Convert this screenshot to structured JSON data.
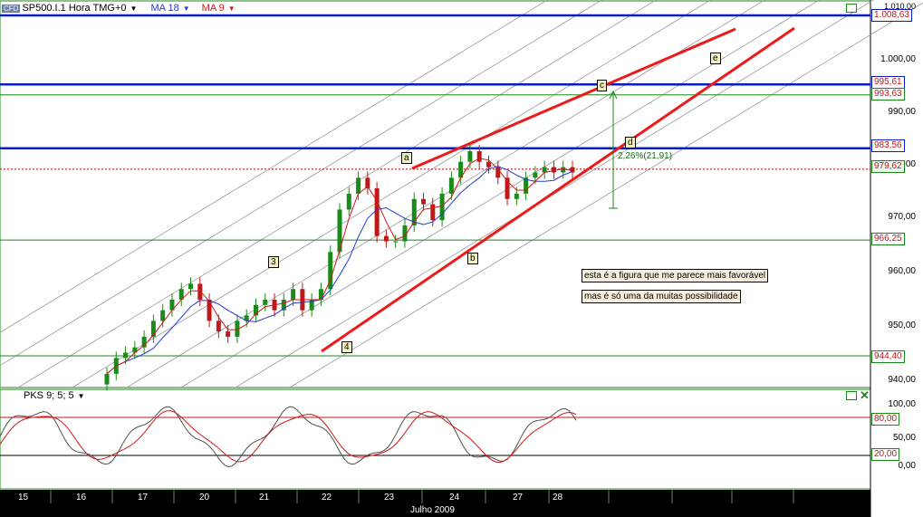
{
  "header": {
    "logo": "CFD",
    "symbol_label": "SP500.I.1 Hora TMG+0",
    "ma1_label": "MA 18",
    "ma2_label": "MA 9",
    "dropdown_icon": "caret-down-icon"
  },
  "indicator_header": {
    "label": "PKS 9; 5; 5"
  },
  "colors": {
    "candle_up": "#1a8a1a",
    "candle_down": "#c01818",
    "ma18": "#1f3bd6",
    "ma9": "#d01818",
    "trend": "#ee1a1a",
    "level": "#0a1ec0",
    "hline": "#1a8a1a",
    "channel": "#9a9a9a",
    "osc_k": "#505050",
    "osc_d": "#d01818"
  },
  "chart_data": [
    {
      "type": "candlestick",
      "y_ticks": [
        "1.010,00",
        "1.000,00",
        "990,00",
        "980,00",
        "970,00",
        "960,00",
        "950,00",
        "940,00"
      ],
      "ylim": [
        938,
        1012
      ],
      "x_ticks": [
        "15",
        "16",
        "17",
        "20",
        "21",
        "22",
        "23",
        "24",
        "27",
        "28"
      ],
      "x_axis_label": "Julho 2009",
      "price_labels": [
        {
          "text": "1.008,63",
          "value": 1008.63,
          "style": "level"
        },
        {
          "text": "995,61",
          "value": 995.61,
          "style": "level"
        },
        {
          "text": "993,63",
          "value": 993.63,
          "style": "hline"
        },
        {
          "text": "983,56",
          "value": 983.56,
          "style": "level"
        },
        {
          "text": "979,62",
          "value": 979.62,
          "style": "current"
        },
        {
          "text": "966,25",
          "value": 966.25,
          "style": "hline"
        },
        {
          "text": "944,40",
          "value": 944.4,
          "style": "hline"
        }
      ],
      "wave_labels": [
        "3",
        "4",
        "a",
        "b",
        "c",
        "d",
        "e"
      ],
      "measure_label": "2,26%(21,91)",
      "annotations": [
        "esta é a figura que me parece mais favorável",
        "mas é só uma da muitas possibilidade"
      ],
      "series_candles": {
        "approx_close": [
          941,
          944,
          945,
          946,
          948,
          951,
          953,
          955,
          957,
          958,
          955,
          951,
          949,
          948,
          951,
          952,
          954,
          955,
          953,
          955,
          957,
          953,
          955,
          957,
          964,
          972,
          975,
          978,
          976,
          967,
          966,
          966,
          969,
          974,
          973,
          970,
          975,
          978,
          981,
          983,
          981,
          980,
          978,
          974,
          975,
          978,
          979,
          980,
          979,
          980,
          979
        ]
      },
      "ma_lines": [
        "MA 18",
        "MA 9"
      ]
    },
    {
      "type": "line",
      "title": "PKS 9; 5; 5",
      "y_ticks": [
        "100,00",
        "50,00",
        "0,00"
      ],
      "ylim": [
        -10,
        110
      ],
      "levels": [
        {
          "text": "80,00",
          "value": 80
        },
        {
          "text": "20,00",
          "value": 20
        }
      ]
    }
  ]
}
